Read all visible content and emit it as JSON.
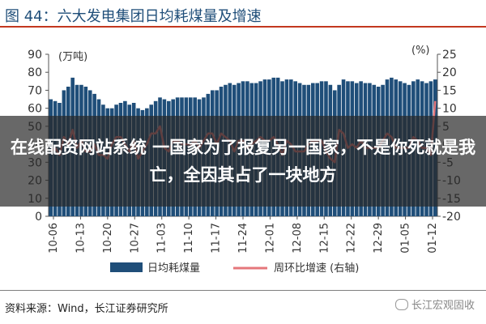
{
  "header": {
    "title": "图 44：六大发电集团日均耗煤量及增速"
  },
  "footer": {
    "source": "资料来源：Wind，长江证券研究所",
    "watermark": "长江宏观固收"
  },
  "overlay": {
    "text": "在线配资网站系统 一国家为了报复另一国家，不是你死就是我亡，全因其占了一块地方"
  },
  "chart_data": {
    "type": "bar",
    "left_unit": "(万吨)",
    "right_unit": "(%)",
    "left_ylim": [
      0,
      90
    ],
    "right_ylim": [
      -20,
      25
    ],
    "left_ticks": [
      0,
      10,
      20,
      30,
      40,
      50,
      60,
      70,
      80,
      90
    ],
    "right_ticks": [
      -20,
      -15,
      -10,
      -5,
      0,
      5,
      10,
      15,
      20,
      25
    ],
    "x_ticks": [
      "10-06",
      "10-13",
      "10-20",
      "10-27",
      "11-03",
      "11-10",
      "11-17",
      "11-24",
      "12-01",
      "12-08",
      "12-15",
      "12-22",
      "12-29",
      "01-05",
      "01-12"
    ],
    "colors": {
      "bar": "#1f4e79",
      "line": "#e5777b"
    },
    "series": [
      {
        "name": "日均耗煤量",
        "values": [
          65,
          64,
          63,
          70,
          72,
          77,
          73,
          73,
          72,
          70,
          68,
          65,
          62,
          60,
          60,
          62,
          63,
          64,
          62,
          63,
          60,
          59,
          60,
          62,
          64,
          66,
          65,
          64,
          65,
          66,
          66,
          66,
          66,
          66,
          65,
          66,
          68,
          70,
          70,
          72,
          73,
          74,
          73,
          74,
          75,
          75,
          74,
          74,
          75,
          76,
          76,
          77,
          77,
          75,
          76,
          76,
          75,
          74,
          73,
          73,
          74,
          74,
          75,
          75,
          73,
          70,
          73,
          76,
          75,
          75,
          74,
          75,
          74,
          74,
          73,
          72,
          73,
          76,
          77,
          76,
          75,
          74,
          73,
          75,
          76,
          75,
          74,
          75,
          76
        ]
      },
      {
        "name": "周环比增速 (右轴)",
        "values": [
          -2,
          -1,
          -3,
          2,
          0,
          4,
          -1,
          1,
          -2,
          -2,
          0,
          -3,
          -3,
          -4,
          0,
          2,
          2,
          0,
          -2,
          1,
          -4,
          -2,
          0,
          3,
          3,
          5,
          -1,
          -2,
          1,
          1,
          0,
          0,
          0,
          1,
          -1,
          1,
          3,
          3,
          0,
          3,
          2,
          1,
          -2,
          1,
          1,
          -1,
          0,
          1,
          2,
          1,
          1,
          2,
          0,
          -3,
          1,
          0,
          -2,
          -2,
          -2,
          0,
          1,
          1,
          1,
          -2,
          -4,
          -5,
          4,
          3,
          -1,
          0,
          -1,
          1,
          -1,
          -1,
          -1,
          -1,
          1,
          3,
          2,
          -1,
          -1,
          -1,
          -1,
          2,
          1,
          -1,
          -1,
          -3,
          12
        ]
      }
    ]
  }
}
